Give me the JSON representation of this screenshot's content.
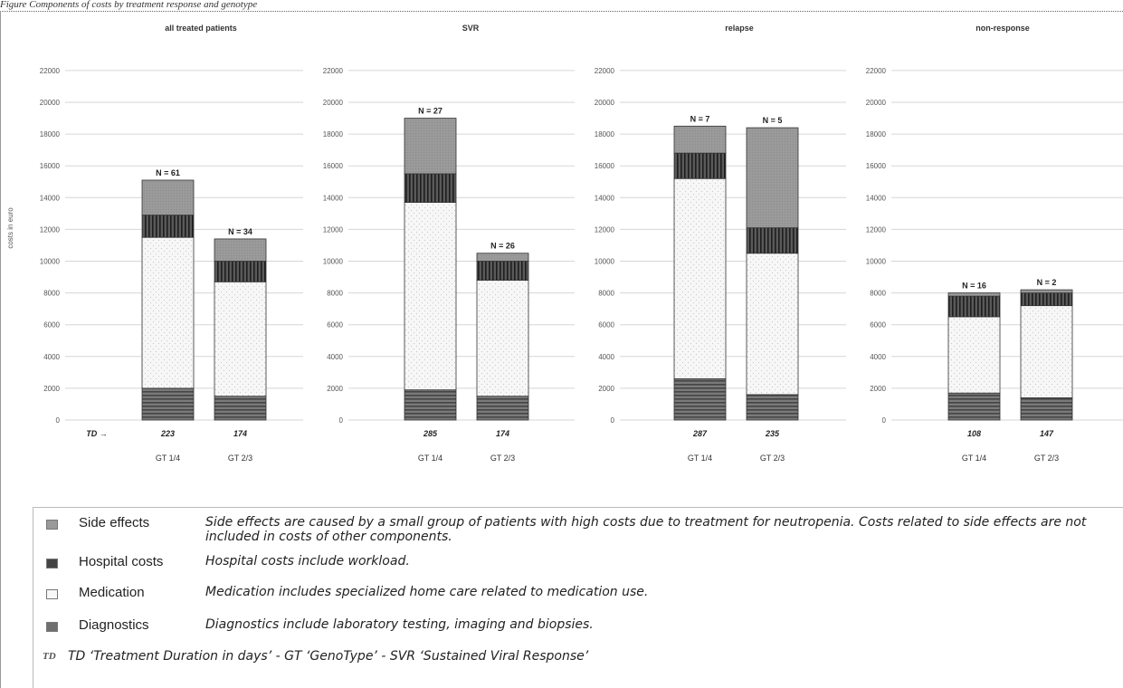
{
  "caption": "Figure  Components of costs by treatment response and genotype",
  "colors": {
    "side_effects": "#9a9a9a",
    "hospital": "#444444",
    "medication": "#f7f7f7",
    "diagnostics": "#6f6f6f",
    "grid": "#d6d6d6",
    "bar_border": "#333333"
  },
  "chart_data": {
    "type": "bar",
    "stacked": true,
    "ylabel": "costs in euro",
    "ylim": [
      0,
      22000
    ],
    "yticks": [
      0,
      2000,
      4000,
      6000,
      8000,
      10000,
      12000,
      14000,
      16000,
      18000,
      20000,
      22000
    ],
    "grid": true,
    "td_marker": "TD →",
    "stack_order": [
      "Diagnostics",
      "Medication",
      "Hospital costs",
      "Side effects"
    ],
    "panels": [
      {
        "title": "all treated patients",
        "categories": [
          "GT 1/4",
          "GT 2/3"
        ],
        "n_labels": [
          "N = 61",
          "N = 34"
        ],
        "td": [
          "223",
          "174"
        ],
        "series": [
          {
            "name": "Diagnostics",
            "values": [
              2000,
              1500
            ]
          },
          {
            "name": "Medication",
            "values": [
              9500,
              7200
            ]
          },
          {
            "name": "Hospital costs",
            "values": [
              1400,
              1300
            ]
          },
          {
            "name": "Side effects",
            "values": [
              2200,
              1400
            ]
          }
        ]
      },
      {
        "title": "SVR",
        "categories": [
          "GT 1/4",
          "GT 2/3"
        ],
        "n_labels": [
          "N = 27",
          "N = 26"
        ],
        "td": [
          "285",
          "174"
        ],
        "series": [
          {
            "name": "Diagnostics",
            "values": [
              1900,
              1500
            ]
          },
          {
            "name": "Medication",
            "values": [
              11800,
              7300
            ]
          },
          {
            "name": "Hospital costs",
            "values": [
              1800,
              1200
            ]
          },
          {
            "name": "Side effects",
            "values": [
              3500,
              500
            ]
          }
        ]
      },
      {
        "title": "relapse",
        "categories": [
          "GT 1/4",
          "GT 2/3"
        ],
        "n_labels": [
          "N = 7",
          "N = 5"
        ],
        "td": [
          "287",
          "235"
        ],
        "series": [
          {
            "name": "Diagnostics",
            "values": [
              2600,
              1600
            ]
          },
          {
            "name": "Medication",
            "values": [
              12600,
              8900
            ]
          },
          {
            "name": "Hospital costs",
            "values": [
              1600,
              1600
            ]
          },
          {
            "name": "Side effects",
            "values": [
              1700,
              6300
            ]
          }
        ]
      },
      {
        "title": "non-response",
        "categories": [
          "GT 1/4",
          "GT 2/3"
        ],
        "n_labels": [
          "N = 16",
          "N = 2"
        ],
        "td": [
          "108",
          "147"
        ],
        "series": [
          {
            "name": "Diagnostics",
            "values": [
              1700,
              1400
            ]
          },
          {
            "name": "Medication",
            "values": [
              4800,
              5800
            ]
          },
          {
            "name": "Hospital costs",
            "values": [
              1300,
              800
            ]
          },
          {
            "name": "Side effects",
            "values": [
              200,
              200
            ]
          }
        ]
      }
    ]
  },
  "legend": {
    "items": [
      {
        "key": "side_effects",
        "name": "Side effects",
        "description": "Side effects are caused by a small group of patients with high costs due to treatment for neutropenia. Costs related to side effects are not included in costs of other components."
      },
      {
        "key": "hospital",
        "name": "Hospital costs",
        "description": "Hospital costs include workload."
      },
      {
        "key": "medication",
        "name": "Medication",
        "description": "Medication includes specialized home care related to medication use."
      },
      {
        "key": "diagnostics",
        "name": "Diagnostics",
        "description": "Diagnostics include laboratory testing, imaging and biopsies."
      }
    ],
    "footer_badge": "TD",
    "footer": "TD ‘Treatment Duration in days’ - GT ‘GenoType’ - SVR ‘Sustained Viral Response’"
  }
}
